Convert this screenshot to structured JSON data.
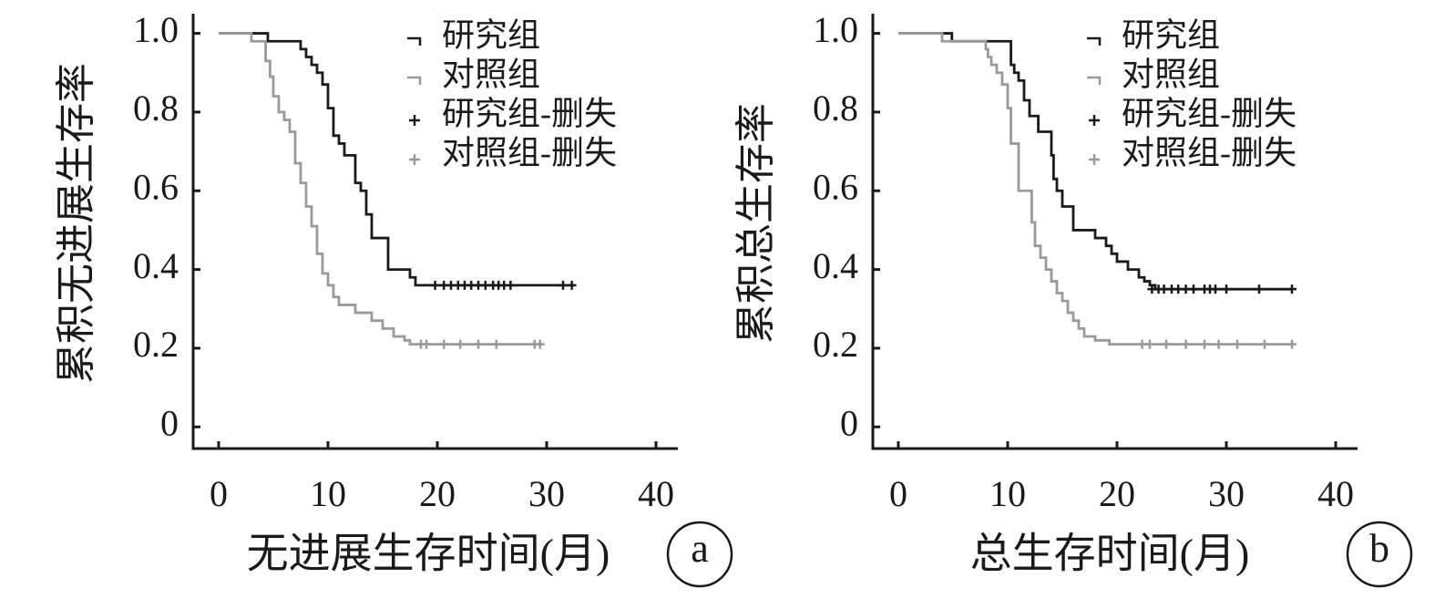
{
  "chart_data": [
    {
      "type": "line",
      "step": true,
      "ylabel": "累积无进展生存率",
      "xlabel": "无进展生存时间(月)",
      "panel_label": "a",
      "xlim": [
        -2.33,
        42
      ],
      "ylim": [
        -0.055,
        1.05
      ],
      "xticks": [
        0,
        10,
        20,
        30,
        40
      ],
      "yticks": [
        0,
        0.2,
        0.4,
        0.6,
        0.8,
        {
          "value": 1,
          "label": "1.0"
        }
      ],
      "legend": "upper right",
      "series": [
        {
          "name": "研究组",
          "color": "#1a1a1a",
          "x": [
            0,
            4.5,
            7.5,
            8,
            8.5,
            9,
            9.5,
            10,
            10.5,
            11,
            11.5,
            12.5,
            13,
            13.5,
            14,
            15.5,
            17.5,
            18,
            18.5,
            32.5
          ],
          "values": [
            1,
            0.98,
            0.96,
            0.94,
            0.92,
            0.9,
            0.87,
            0.81,
            0.74,
            0.72,
            0.69,
            0.62,
            0.6,
            0.54,
            0.48,
            0.4,
            0.38,
            0.36,
            0.36,
            0.36
          ]
        },
        {
          "name": "对照组",
          "color": "#9a9a9a",
          "x": [
            0,
            3,
            4.3,
            4.7,
            5,
            5.5,
            6,
            6.5,
            7,
            7.5,
            8,
            8.5,
            9,
            9.5,
            10,
            10.5,
            11,
            12.5,
            14,
            15,
            16,
            17,
            17.5,
            18,
            29.5
          ],
          "values": [
            1,
            0.98,
            0.93,
            0.89,
            0.84,
            0.8,
            0.78,
            0.75,
            0.67,
            0.62,
            0.56,
            0.51,
            0.44,
            0.39,
            0.36,
            0.33,
            0.31,
            0.29,
            0.27,
            0.25,
            0.23,
            0.22,
            0.21,
            0.21,
            0.21
          ]
        },
        {
          "name": "研究组-删失",
          "color": "#1a1a1a",
          "marker": "+",
          "x": [
            19.8,
            20.6,
            21.25,
            21.9,
            22.5,
            23.1,
            23.75,
            24.4,
            25.1,
            25.6,
            26.1,
            26.7,
            31.5,
            32.3
          ],
          "values": [
            0.36,
            0.36,
            0.36,
            0.36,
            0.36,
            0.36,
            0.36,
            0.36,
            0.36,
            0.36,
            0.36,
            0.36,
            0.36,
            0.36
          ]
        },
        {
          "name": "对照组-删失",
          "color": "#9a9a9a",
          "marker": "+",
          "x": [
            18.5,
            19,
            20.6,
            22.1,
            23.75,
            25.4,
            28.9,
            29.4
          ],
          "values": [
            0.21,
            0.21,
            0.21,
            0.21,
            0.21,
            0.21,
            0.21,
            0.21
          ]
        }
      ]
    },
    {
      "type": "line",
      "step": true,
      "ylabel": "累积总生存率",
      "xlabel": "总生存时间(月)",
      "panel_label": "b",
      "xlim": [
        -2.33,
        42
      ],
      "ylim": [
        -0.055,
        1.05
      ],
      "xticks": [
        0,
        10,
        20,
        30,
        40
      ],
      "yticks": [
        0,
        0.2,
        0.4,
        0.6,
        0.8,
        {
          "value": 1,
          "label": "1.0"
        }
      ],
      "legend": "upper right",
      "series": [
        {
          "name": "研究组",
          "color": "#1a1a1a",
          "x": [
            0,
            4.9,
            10.3,
            10.6,
            11,
            11.5,
            12,
            12.8,
            14,
            14.2,
            14.5,
            15,
            16,
            18,
            19,
            19.5,
            20,
            21,
            22,
            22.5,
            23,
            23.5,
            36
          ],
          "values": [
            1,
            0.98,
            0.92,
            0.9,
            0.88,
            0.83,
            0.79,
            0.75,
            0.69,
            0.63,
            0.6,
            0.56,
            0.5,
            0.48,
            0.46,
            0.44,
            0.42,
            0.4,
            0.38,
            0.37,
            0.36,
            0.35,
            0.35
          ]
        },
        {
          "name": "对照组",
          "color": "#9a9a9a",
          "x": [
            0,
            4,
            8,
            8.2,
            8.5,
            9,
            9.5,
            10,
            10.3,
            11,
            12.2,
            12.5,
            13,
            13.5,
            14,
            14.5,
            15,
            15.5,
            16,
            16.5,
            17,
            18,
            19.3,
            36
          ],
          "values": [
            1,
            0.98,
            0.96,
            0.94,
            0.92,
            0.9,
            0.87,
            0.81,
            0.72,
            0.6,
            0.52,
            0.46,
            0.43,
            0.4,
            0.37,
            0.34,
            0.32,
            0.29,
            0.27,
            0.25,
            0.23,
            0.22,
            0.21,
            0.21
          ]
        },
        {
          "name": "研究组-删失",
          "color": "#1a1a1a",
          "marker": "+",
          "x": [
            23.2,
            23.8,
            24.3,
            25,
            25.6,
            26.3,
            27,
            28,
            28.5,
            29,
            30,
            33,
            36
          ],
          "values": [
            0.35,
            0.35,
            0.35,
            0.35,
            0.35,
            0.35,
            0.35,
            0.35,
            0.35,
            0.35,
            0.35,
            0.35,
            0.35
          ]
        },
        {
          "name": "对照组-删失",
          "color": "#9a9a9a",
          "marker": "+",
          "x": [
            22.3,
            23,
            24.5,
            26.3,
            28,
            29.3,
            31,
            33.5,
            36
          ],
          "values": [
            0.21,
            0.21,
            0.21,
            0.21,
            0.21,
            0.21,
            0.21,
            0.21,
            0.21
          ]
        }
      ]
    }
  ]
}
